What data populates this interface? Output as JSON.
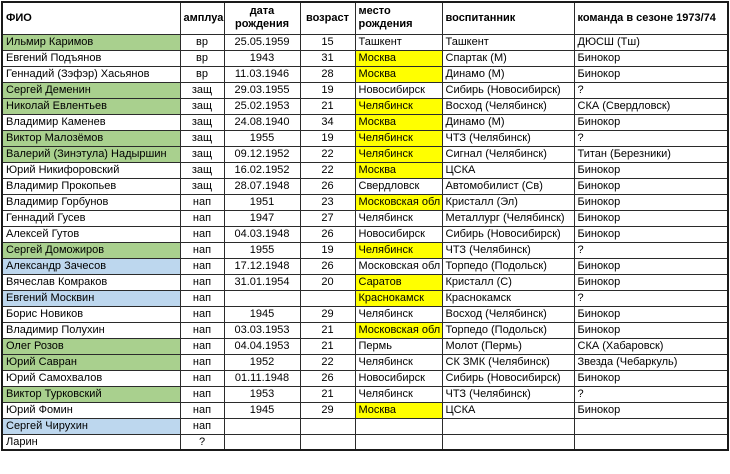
{
  "header": {
    "columns": [
      "ФИО",
      "амплуа",
      "дата рождения",
      "возраст",
      "место рождения",
      "воспитанник",
      "команда в сезоне 1973/74"
    ]
  },
  "colors": {
    "green": "#a9d08e",
    "blue": "#bdd7ee",
    "yellow": "#ffff00"
  },
  "rows": [
    {
      "fio": "Ильмир Каримов",
      "fio_bg": "green",
      "amplua": "вр",
      "date": "25.05.1959",
      "age": "15",
      "place": "Ташкент",
      "place_bg": "",
      "vosp": "Ташкент",
      "team": "ДЮСШ (Тш)"
    },
    {
      "fio": "Евгений Подъянов",
      "fio_bg": "",
      "amplua": "вр",
      "date": "1943",
      "age": "31",
      "place": "Москва",
      "place_bg": "yellow",
      "vosp": "Спартак (М)",
      "team": "Бинокор"
    },
    {
      "fio": "Геннадий (Зэфэр) Хасьянов",
      "fio_bg": "",
      "amplua": "вр",
      "date": "11.03.1946",
      "age": "28",
      "place": "Москва",
      "place_bg": "yellow",
      "vosp": "Динамо (М)",
      "team": "Бинокор"
    },
    {
      "fio": "Сергей Деменин",
      "fio_bg": "green",
      "amplua": "защ",
      "date": "29.03.1955",
      "age": "19",
      "place": "Новосибирск",
      "place_bg": "",
      "vosp": "Сибирь (Новосибирск)",
      "team": "?"
    },
    {
      "fio": "Николай Евлентьев",
      "fio_bg": "green",
      "amplua": "защ",
      "date": "25.02.1953",
      "age": "21",
      "place": "Челябинск",
      "place_bg": "yellow",
      "vosp": "Восход (Челябинск)",
      "team": "СКА (Свердловск)"
    },
    {
      "fio": "Владимир Каменев",
      "fio_bg": "",
      "amplua": "защ",
      "date": "24.08.1940",
      "age": "34",
      "place": "Москва",
      "place_bg": "yellow",
      "vosp": "Динамо (М)",
      "team": "Бинокор"
    },
    {
      "fio": "Виктор Малозёмов",
      "fio_bg": "green",
      "amplua": "защ",
      "date": "1955",
      "age": "19",
      "place": "Челябинск",
      "place_bg": "yellow",
      "vosp": "ЧТЗ (Челябинск)",
      "team": "?"
    },
    {
      "fio": "Валерий (Зинэтула) Надыршин",
      "fio_bg": "green",
      "amplua": "защ",
      "date": "09.12.1952",
      "age": "22",
      "place": "Челябинск",
      "place_bg": "yellow",
      "vosp": "Сигнал (Челябинск)",
      "team": "Титан (Березники)"
    },
    {
      "fio": "Юрий Никифоровский",
      "fio_bg": "",
      "amplua": "защ",
      "date": "16.02.1952",
      "age": "22",
      "place": "Москва",
      "place_bg": "yellow",
      "vosp": "ЦСКА",
      "team": "Бинокор"
    },
    {
      "fio": "Владимир Прокопьев",
      "fio_bg": "",
      "amplua": "защ",
      "date": "28.07.1948",
      "age": "26",
      "place": "Свердловск",
      "place_bg": "",
      "vosp": "Автомобилист (Св)",
      "team": "Бинокор"
    },
    {
      "fio": "Владимир Горбунов",
      "fio_bg": "",
      "amplua": "нап",
      "date": "1951",
      "age": "23",
      "place": "Московская обл",
      "place_bg": "yellow",
      "vosp": "Кристалл (Эл)",
      "team": "Бинокор"
    },
    {
      "fio": "Геннадий Гусев",
      "fio_bg": "",
      "amplua": "нап",
      "date": "1947",
      "age": "27",
      "place": "Челябинск",
      "place_bg": "",
      "vosp": "Металлург (Челябинск)",
      "team": "Бинокор"
    },
    {
      "fio": "Алексей Гутов",
      "fio_bg": "",
      "amplua": "нап",
      "date": "04.03.1948",
      "age": "26",
      "place": "Новосибирск",
      "place_bg": "",
      "vosp": "Сибирь (Новосибирск)",
      "team": "Бинокор"
    },
    {
      "fio": "Сергей Доможиров",
      "fio_bg": "green",
      "amplua": "нап",
      "date": "1955",
      "age": "19",
      "place": "Челябинск",
      "place_bg": "yellow",
      "vosp": "ЧТЗ (Челябинск)",
      "team": "?"
    },
    {
      "fio": "Александр Зачесов",
      "fio_bg": "blue",
      "amplua": "нап",
      "date": "17.12.1948",
      "age": "26",
      "place": "Московская обл",
      "place_bg": "",
      "vosp": "Торпедо (Подольск)",
      "team": "Бинокор"
    },
    {
      "fio": "Вячеслав Комраков",
      "fio_bg": "",
      "amplua": "нап",
      "date": "31.01.1954",
      "age": "20",
      "place": "Саратов",
      "place_bg": "yellow",
      "vosp": "Кристалл (С)",
      "team": "Бинокор"
    },
    {
      "fio": "Евгений Москвин",
      "fio_bg": "blue",
      "amplua": "нап",
      "date": "",
      "age": "",
      "place": "Краснокамск",
      "place_bg": "yellow",
      "vosp": "Краснокамск",
      "team": "?"
    },
    {
      "fio": "Борис Новиков",
      "fio_bg": "",
      "amplua": "нап",
      "date": "1945",
      "age": "29",
      "place": "Челябинск",
      "place_bg": "",
      "vosp": "Восход (Челябинск)",
      "team": "Бинокор"
    },
    {
      "fio": "Владимир Полухин",
      "fio_bg": "",
      "amplua": "нап",
      "date": "03.03.1953",
      "age": "21",
      "place": "Московская обл",
      "place_bg": "yellow",
      "vosp": "Торпедо (Подольск)",
      "team": "Бинокор"
    },
    {
      "fio": "Олег Розов",
      "fio_bg": "green",
      "amplua": "нап",
      "date": "04.04.1953",
      "age": "21",
      "place": "Пермь",
      "place_bg": "",
      "vosp": "Молот (Пермь)",
      "team": "СКА (Хабаровск)"
    },
    {
      "fio": "Юрий Савран",
      "fio_bg": "green",
      "amplua": "нап",
      "date": "1952",
      "age": "22",
      "place": "Челябинск",
      "place_bg": "",
      "vosp": "СК ЗМК (Челябинск)",
      "team": "Звезда (Чебаркуль)"
    },
    {
      "fio": "Юрий Самохвалов",
      "fio_bg": "",
      "amplua": "нап",
      "date": "01.11.1948",
      "age": "26",
      "place": "Новосибирск",
      "place_bg": "",
      "vosp": "Сибирь (Новосибирск)",
      "team": "Бинокор"
    },
    {
      "fio": "Виктор Турковский",
      "fio_bg": "green",
      "amplua": "нап",
      "date": "1953",
      "age": "21",
      "place": "Челябинск",
      "place_bg": "",
      "vosp": "ЧТЗ (Челябинск)",
      "team": "?"
    },
    {
      "fio": "Юрий Фомин",
      "fio_bg": "",
      "amplua": "нап",
      "date": "1945",
      "age": "29",
      "place": "Москва",
      "place_bg": "yellow",
      "vosp": "ЦСКА",
      "team": "Бинокор"
    },
    {
      "fio": "Сергей Чирухин",
      "fio_bg": "blue",
      "amplua": "нап",
      "date": "",
      "age": "",
      "place": "",
      "place_bg": "",
      "vosp": "",
      "team": ""
    },
    {
      "fio": "Ларин",
      "fio_bg": "",
      "amplua": "?",
      "date": "",
      "age": "",
      "place": "",
      "place_bg": "",
      "vosp": "",
      "team": ""
    }
  ]
}
